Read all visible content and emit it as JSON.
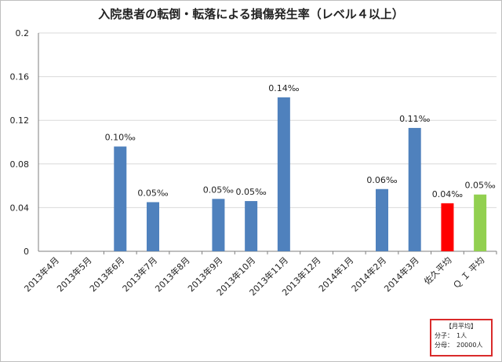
{
  "chart_data": {
    "type": "bar",
    "title": "入院患者の転倒・転落による損傷発生率（レベル４以上）",
    "categories": [
      "2013年4月",
      "2013年5月",
      "2013年6月",
      "2013年7月",
      "2013年8月",
      "2013年9月",
      "2013年10月",
      "2013年11月",
      "2013年12月",
      "2014年1月",
      "2014年2月",
      "2014年3月",
      "佐久平均",
      "Ｑ Ｉ 平均"
    ],
    "values": [
      0,
      0,
      0.096,
      0.045,
      0,
      0.048,
      0.046,
      0.141,
      0,
      0,
      0.057,
      0.113,
      0.044,
      0.052
    ],
    "data_labels": [
      "",
      "",
      "0.10‰",
      "0.05‰",
      "",
      "0.05‰",
      "0.05‰",
      "0.14‰",
      "",
      "",
      "0.06‰",
      "0.11‰",
      "0.04‰",
      "0.05‰"
    ],
    "bar_colors": [
      "#4f81bd",
      "#4f81bd",
      "#4f81bd",
      "#4f81bd",
      "#4f81bd",
      "#4f81bd",
      "#4f81bd",
      "#4f81bd",
      "#4f81bd",
      "#4f81bd",
      "#4f81bd",
      "#4f81bd",
      "#ff0000",
      "#92d050"
    ],
    "ylim": [
      0,
      0.2
    ],
    "yticks": [
      "0",
      "0.04",
      "0.08",
      "0.12",
      "0.16",
      "0.2"
    ],
    "xlabel": "",
    "ylabel": "",
    "grid": true,
    "note": {
      "heading": "【月平均】",
      "line1": "分子：　1人",
      "line2": "分母：　20000人"
    }
  }
}
